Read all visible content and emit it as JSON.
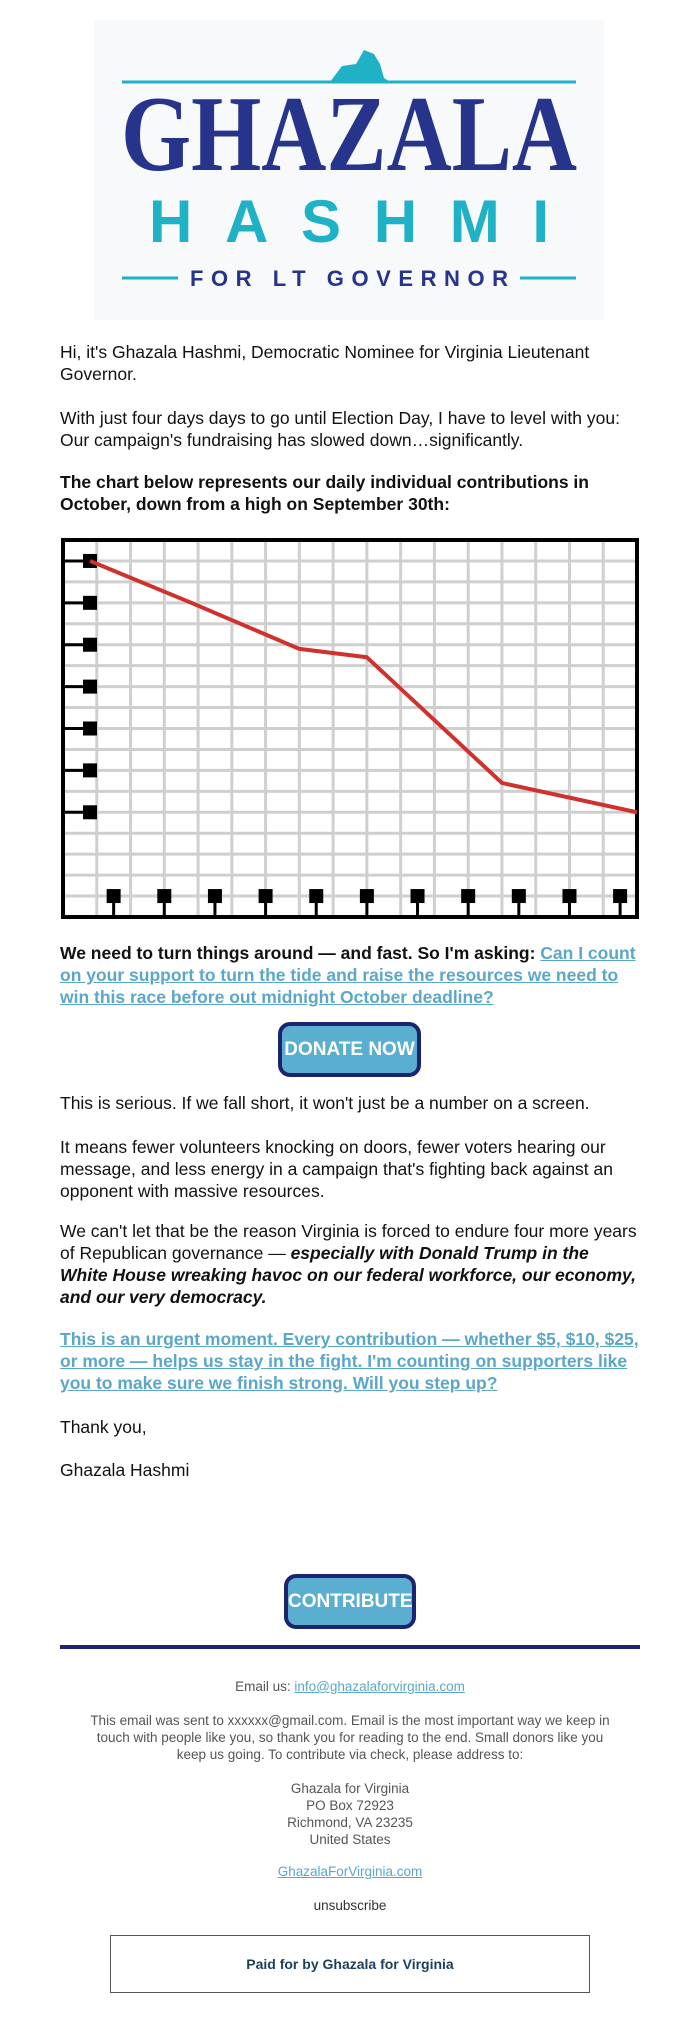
{
  "header": {
    "logo_name": "GHAZALA",
    "logo_surname": "HASHMI",
    "logo_tagline": "FOR LT GOVERNOR",
    "logo_icon": "virginia-state-icon",
    "colors": {
      "navy": "#27348b",
      "teal": "#1fb1c6"
    }
  },
  "body": {
    "intro": "Hi, it's Ghazala Hashmi, Democratic Nominee for Virginia Lieutenant Governor.",
    "para2": "With just four days days to go until Election Day, I have to level with you: Our campaign's fundraising has slowed down…significantly.",
    "chart_intro": "The chart below represents our daily individual contributions in October, down from a high on September 30th:",
    "ask_bold": "We need to turn things around — and fast.  So I'm asking: ",
    "ask_link": "Can I count on your support to turn the tide and raise the resources we need to win this race before out midnight October deadline?",
    "donate_label": "DONATE NOW",
    "serious": "This is serious. If we fall short, it won't just be a number on a screen.",
    "fewer": "It means fewer volunteers knocking on doors, fewer voters hearing our message, and less energy in a campaign that's fighting back against an opponent with massive resources.",
    "cant_let": "We can't let that be the reason Virginia is forced to endure four more years of Republican governance — ",
    "cant_let_em": "especially with Donald Trump in the White House wreaking havoc on our federal workforce, our economy, and our very democracy.",
    "urgent_link": "This is an urgent moment. Every contribution — whether $5, $10, $25, or more — helps us stay in the fight. I'm counting on supporters like you to make sure we finish strong. Will you step up?",
    "thanks": "Thank you,",
    "signature": "Ghazala Hashmi",
    "contribute_label": "CONTRIBUTE"
  },
  "chart_data": {
    "type": "line",
    "title": "",
    "xlabel": "",
    "ylabel": "",
    "grid": true,
    "x_ticks": 11,
    "y_ticks": 7,
    "series": [
      {
        "points": [
          [
            0,
            7.5
          ],
          [
            1.5,
            6.5
          ],
          [
            3.1,
            5.4
          ],
          [
            4.1,
            5.2
          ],
          [
            6.1,
            2.2
          ],
          [
            8.1,
            1.5
          ]
        ],
        "color": "#d0312d"
      }
    ],
    "xlim": [
      -0.4,
      8.1
    ],
    "ylim": [
      -1.0,
      8.0
    ]
  },
  "footer": {
    "email_label": "Email us: ",
    "email_link": "info@ghazalaforvirginia.com",
    "sent_note": "This email was sent to xxxxxx@gmail.com. Email is the most important way we keep in touch with people like you, so thank you for reading to the end. Small donors like you keep us going. To contribute via check, please address to:",
    "address": [
      "Ghazala for Virginia",
      "PO Box 72923",
      "Richmond, VA 23235",
      "United States"
    ],
    "site_link": "GhazalaForVirginia.com",
    "unsubscribe": "unsubscribe",
    "paid_for": "Paid for by Ghazala for Virginia"
  }
}
